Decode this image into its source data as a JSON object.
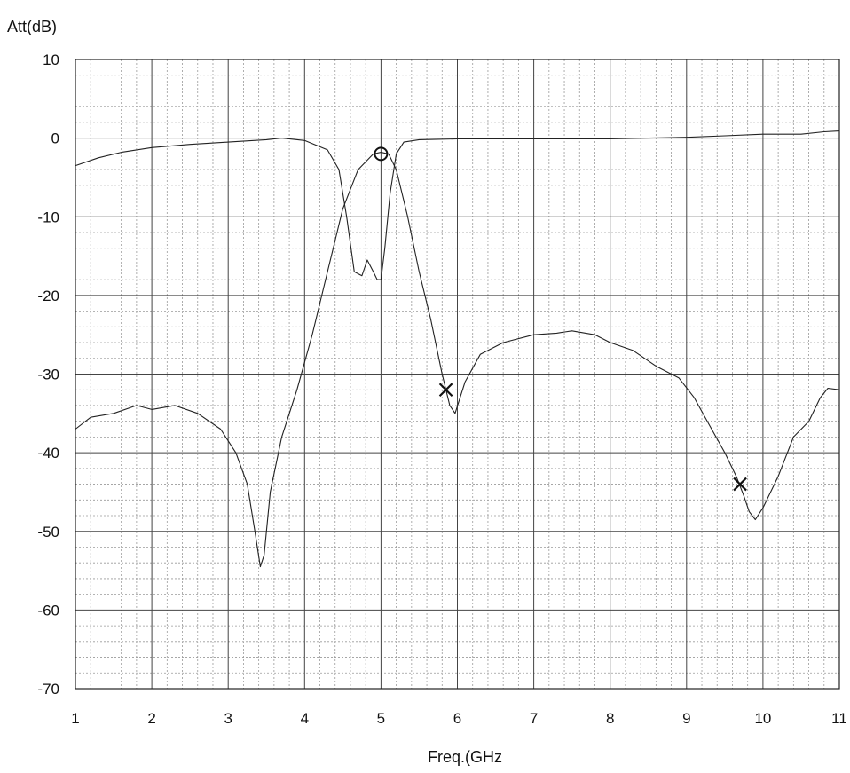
{
  "chart_data": {
    "type": "line",
    "title": "",
    "xlabel": "Freq.(GHz",
    "ylabel": "Att(dB)",
    "xlim": [
      1,
      11
    ],
    "ylim": [
      -70,
      10
    ],
    "grid": true,
    "x_ticks": [
      "1",
      "2",
      "3",
      "4",
      "5",
      "6",
      "7",
      "8",
      "9",
      "10",
      "11"
    ],
    "y_ticks": [
      "10",
      "0",
      "-10",
      "-20",
      "-30",
      "-40",
      "-50",
      "-60",
      "-70"
    ],
    "series": [
      {
        "x": [
          1.0,
          1.3,
          1.6,
          2.0,
          2.5,
          3.0,
          3.5,
          3.7,
          4.0,
          4.3,
          4.45,
          4.55,
          4.65,
          4.75,
          4.82,
          4.9,
          4.95,
          5.0,
          5.05,
          5.12,
          5.2,
          5.3,
          5.5,
          6.0,
          6.5,
          7.0,
          7.5,
          8.0,
          8.5,
          9.0,
          9.5,
          10.0,
          10.5,
          10.8,
          11.0
        ],
        "y": [
          -3.5,
          -2.5,
          -1.8,
          -1.2,
          -0.8,
          -0.5,
          -0.2,
          0.0,
          -0.3,
          -1.5,
          -4.0,
          -10.0,
          -17.0,
          -17.5,
          -15.5,
          -17.0,
          -18.0,
          -18.0,
          -14.0,
          -7.0,
          -2.0,
          -0.5,
          -0.2,
          -0.1,
          -0.1,
          -0.1,
          -0.1,
          -0.1,
          0.0,
          0.1,
          0.3,
          0.5,
          0.5,
          0.8,
          0.9
        ]
      },
      {
        "x": [
          1.0,
          1.2,
          1.5,
          1.8,
          2.0,
          2.3,
          2.6,
          2.9,
          3.1,
          3.25,
          3.35,
          3.42,
          3.47,
          3.55,
          3.7,
          3.9,
          4.1,
          4.3,
          4.5,
          4.7,
          4.9,
          5.0,
          5.1,
          5.2,
          5.35,
          5.5,
          5.65,
          5.8,
          5.9,
          5.97,
          6.1,
          6.3,
          6.6,
          7.0,
          7.3,
          7.5,
          7.8,
          8.0,
          8.3,
          8.6,
          8.9,
          9.1,
          9.3,
          9.5,
          9.65,
          9.75,
          9.82,
          9.9,
          10.0,
          10.2,
          10.4,
          10.6,
          10.75,
          10.85,
          11.0
        ],
        "y": [
          -37.0,
          -35.5,
          -35.0,
          -34.0,
          -34.5,
          -34.0,
          -35.0,
          -37.0,
          -40.0,
          -44.0,
          -50.0,
          -54.5,
          -53.0,
          -45.0,
          -38.0,
          -32.0,
          -25.0,
          -17.0,
          -9.0,
          -4.0,
          -2.0,
          -1.8,
          -2.0,
          -4.0,
          -10.0,
          -17.0,
          -23.0,
          -30.0,
          -34.0,
          -35.0,
          -31.0,
          -27.5,
          -26.0,
          -25.0,
          -24.8,
          -24.5,
          -25.0,
          -26.0,
          -27.0,
          -29.0,
          -30.5,
          -33.0,
          -36.5,
          -40.0,
          -43.0,
          -45.5,
          -47.5,
          -48.5,
          -47.0,
          -43.0,
          -38.0,
          -36.0,
          -33.0,
          -31.8,
          -32.0
        ]
      }
    ],
    "markers": [
      {
        "symbol": "circle",
        "x": 5.0,
        "y": -2.0
      },
      {
        "symbol": "cross",
        "x": 5.85,
        "y": -32.0
      },
      {
        "symbol": "cross",
        "x": 9.7,
        "y": -44.0
      }
    ]
  }
}
